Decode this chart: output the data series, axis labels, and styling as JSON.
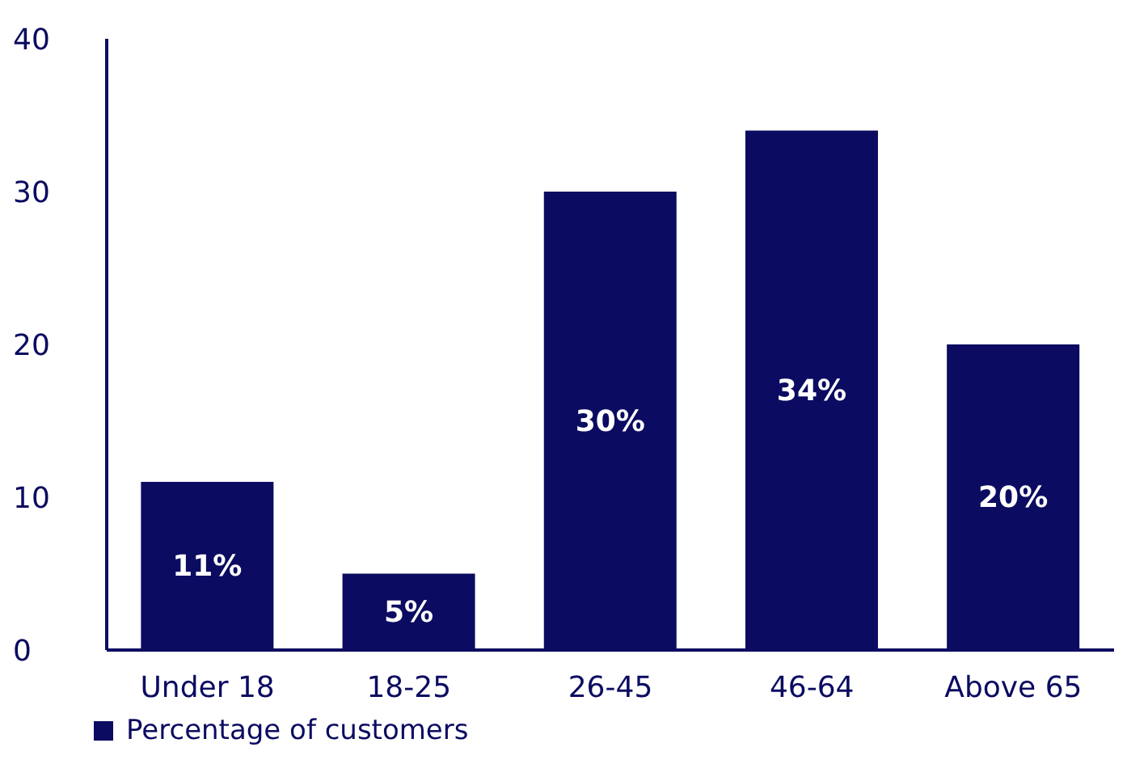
{
  "chart_data": {
    "type": "bar",
    "categories": [
      "Under 18",
      "18-25",
      "26-45",
      "46-64",
      "Above 65"
    ],
    "series": [
      {
        "name": "Percentage of customers",
        "color": "#0b0b61",
        "values": [
          11,
          5,
          30,
          34,
          20
        ],
        "value_labels": [
          "11%",
          "5%",
          "30%",
          "34%",
          "20%"
        ]
      }
    ],
    "ylim": [
      0,
      40
    ],
    "yticks": [
      0,
      10,
      20,
      30,
      40
    ],
    "grid": false,
    "legend": "bottom left"
  }
}
